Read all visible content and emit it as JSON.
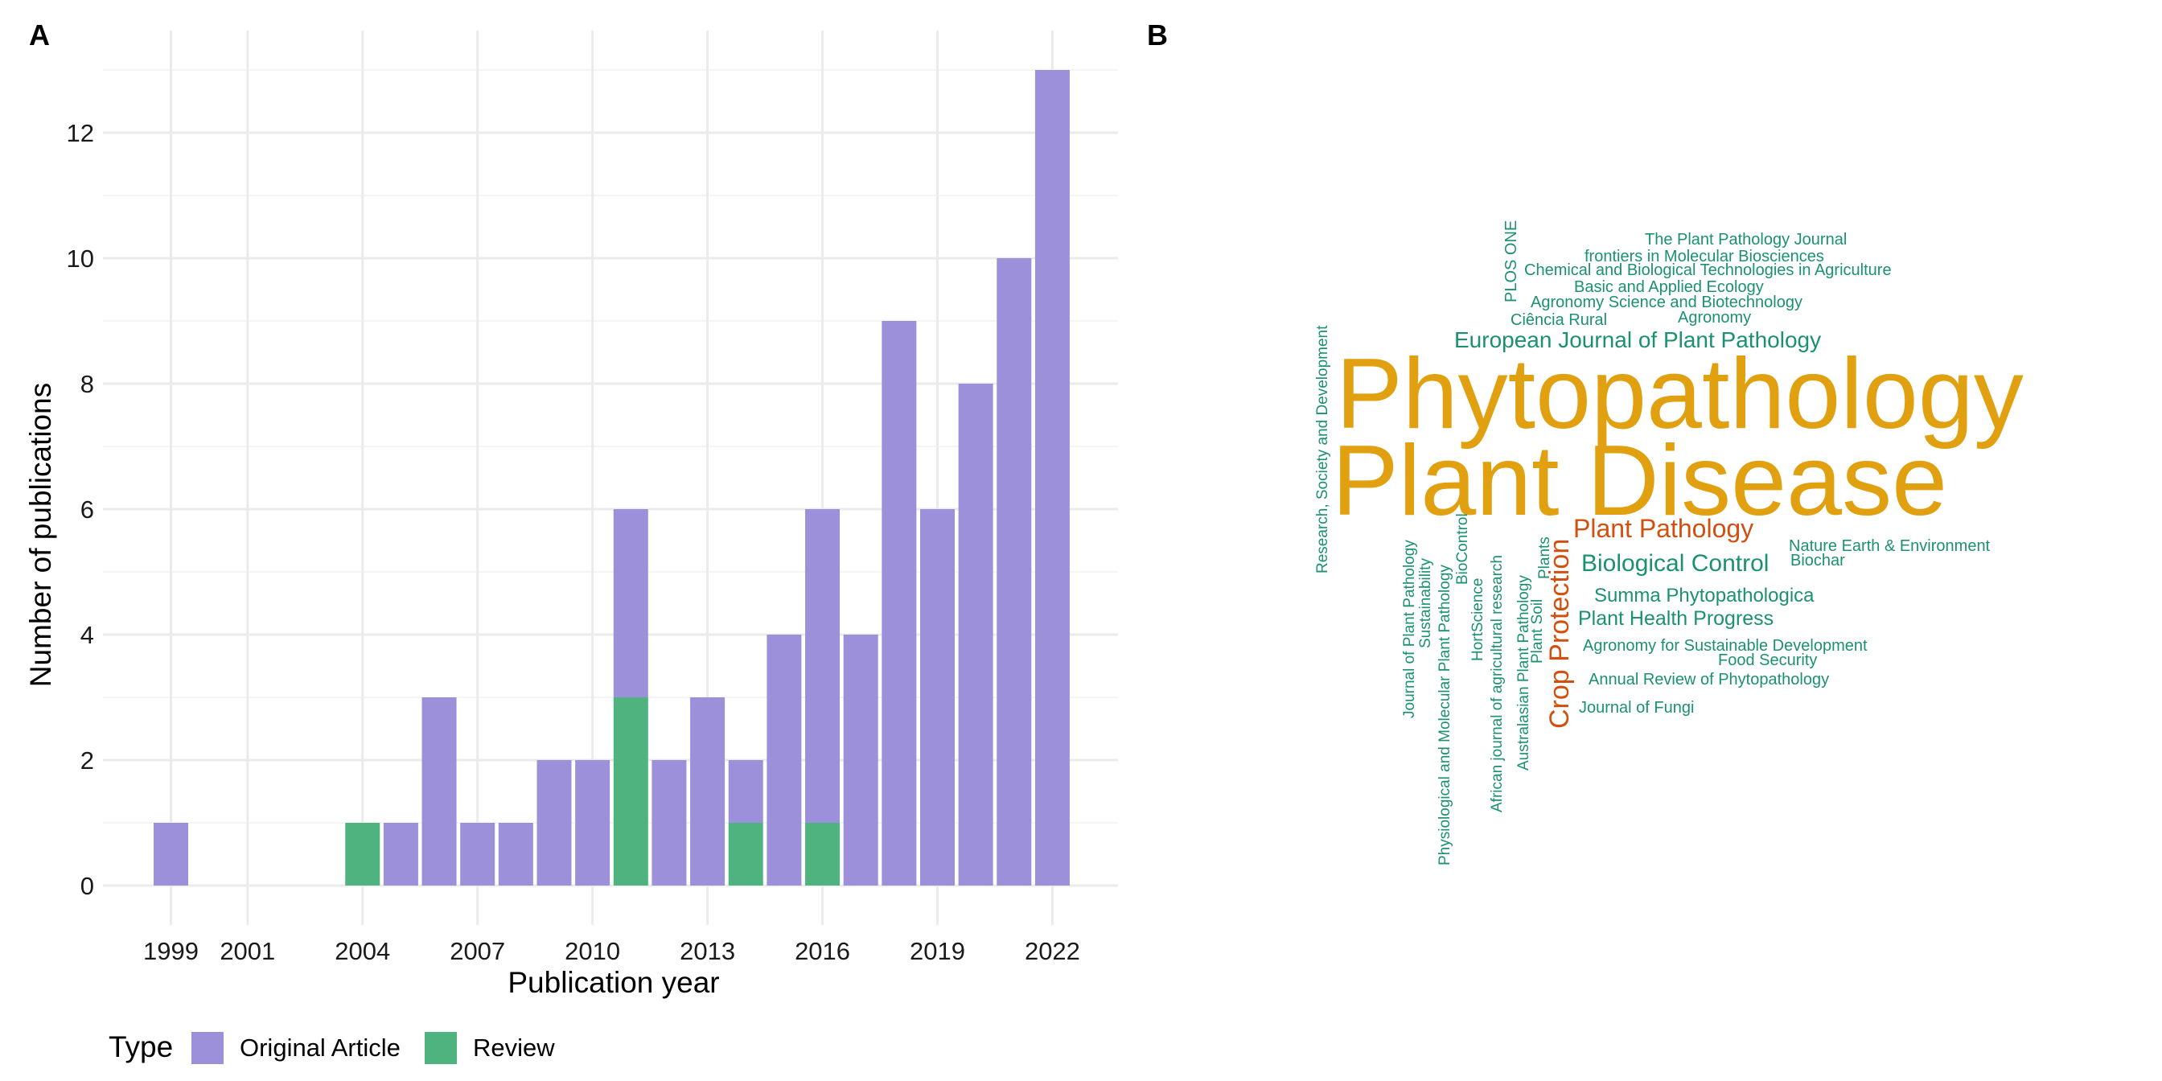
{
  "panels": {
    "a_label": "A",
    "b_label": "B"
  },
  "chart_data": [
    {
      "type": "bar",
      "stacked": true,
      "xlabel": "Publication year",
      "ylabel": "Number of publications",
      "ylim": [
        0,
        13
      ],
      "y_ticks": [
        0,
        2,
        4,
        6,
        8,
        10,
        12
      ],
      "x_tick_labels": [
        "1999",
        "2001",
        "2004",
        "2007",
        "2010",
        "2013",
        "2016",
        "2019",
        "2022"
      ],
      "categories": [
        1999,
        2004,
        2005,
        2006,
        2007,
        2008,
        2009,
        2010,
        2011,
        2012,
        2013,
        2014,
        2015,
        2016,
        2017,
        2018,
        2019,
        2020,
        2021,
        2022
      ],
      "series": [
        {
          "name": "Original Article",
          "color": "#9b90d9",
          "values": [
            1,
            0,
            1,
            3,
            1,
            1,
            2,
            2,
            3,
            2,
            3,
            1,
            4,
            5,
            4,
            9,
            6,
            8,
            10,
            13
          ]
        },
        {
          "name": "Review",
          "color": "#4fb37f",
          "values": [
            0,
            1,
            0,
            0,
            0,
            0,
            0,
            0,
            3,
            0,
            0,
            1,
            0,
            1,
            0,
            0,
            0,
            0,
            0,
            0
          ]
        }
      ],
      "grid": true,
      "legend": {
        "title": "Type",
        "position": "bottom-left"
      }
    },
    {
      "type": "wordcloud",
      "words": [
        {
          "text": "Phytopathology",
          "color": "#e0a010"
        },
        {
          "text": "Plant Disease",
          "color": "#e0a010"
        },
        {
          "text": "Plant Pathology",
          "color": "#d2500f"
        },
        {
          "text": "Crop Protection",
          "color": "#d2500f"
        },
        {
          "text": "European Journal of Plant Pathology",
          "color": "#1b9170"
        },
        {
          "text": "Biological Control",
          "color": "#1b9170"
        },
        {
          "text": "Plant Health Progress",
          "color": "#1b9170"
        },
        {
          "text": "Summa Phytopathologica",
          "color": "#1b9170"
        },
        {
          "text": "The Plant Pathology Journal",
          "color": "#1b9170"
        },
        {
          "text": "frontiers in Molecular Biosciences",
          "color": "#1b9170"
        },
        {
          "text": "Chemical and Biological Technologies in Agriculture",
          "color": "#1b9170"
        },
        {
          "text": "Basic and Applied Ecology",
          "color": "#1b9170"
        },
        {
          "text": "Agronomy Science and Biotechnology",
          "color": "#1b9170"
        },
        {
          "text": "Ciência Rural",
          "color": "#1b9170"
        },
        {
          "text": "Agronomy",
          "color": "#1b9170"
        },
        {
          "text": "PLOS ONE",
          "color": "#1b9170"
        },
        {
          "text": "Research, Society and Development",
          "color": "#1b9170"
        },
        {
          "text": "Nature Earth & Environment",
          "color": "#1b9170"
        },
        {
          "text": "Biochar",
          "color": "#1b9170"
        },
        {
          "text": "Agronomy for Sustainable Development",
          "color": "#1b9170"
        },
        {
          "text": "Food Security",
          "color": "#1b9170"
        },
        {
          "text": "Annual Review of Phytopathology",
          "color": "#1b9170"
        },
        {
          "text": "Journal of Fungi",
          "color": "#1b9170"
        },
        {
          "text": "Journal of Plant Pathology",
          "color": "#1b9170"
        },
        {
          "text": "Sustainability",
          "color": "#1b9170"
        },
        {
          "text": "Physiological and Molecular Plant Pathology",
          "color": "#1b9170"
        },
        {
          "text": "BioControl",
          "color": "#1b9170"
        },
        {
          "text": "HortScience",
          "color": "#1b9170"
        },
        {
          "text": "African journal of agricultural research",
          "color": "#1b9170"
        },
        {
          "text": "Australasian Plant Pathology",
          "color": "#1b9170"
        },
        {
          "text": "Plant Soil",
          "color": "#1b9170"
        },
        {
          "text": "Plants",
          "color": "#1b9170"
        }
      ]
    }
  ]
}
